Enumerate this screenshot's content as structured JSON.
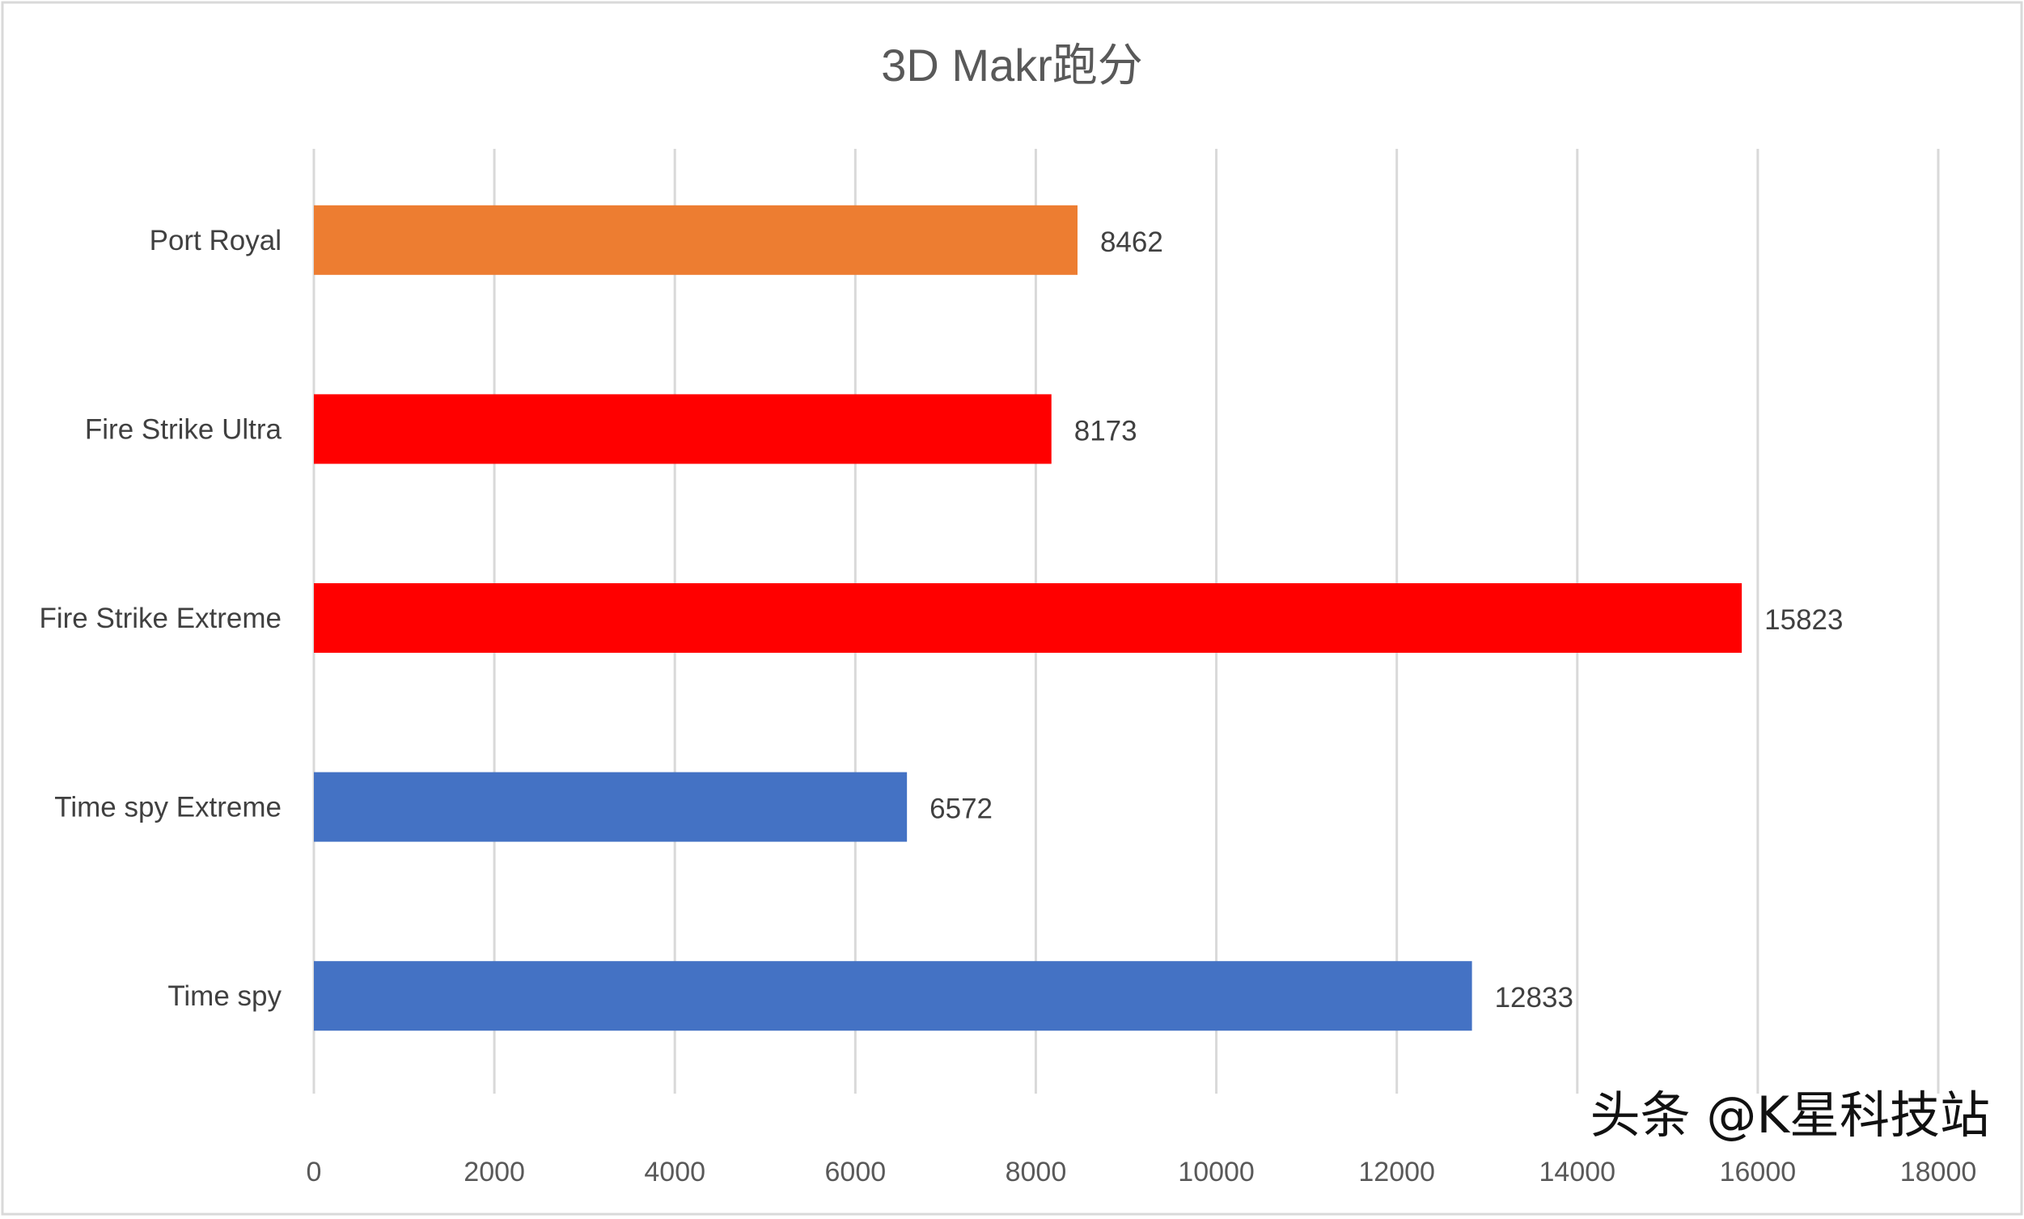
{
  "chart_data": {
    "type": "bar",
    "orientation": "horizontal",
    "title": "3D Makr跑分",
    "categories": [
      "Port Royal",
      "Fire Strike Ultra",
      "Fire Strike Extreme",
      "Time spy Extreme",
      "Time spy"
    ],
    "values": [
      8462,
      8173,
      15823,
      6572,
      12833
    ],
    "bar_colors": [
      "#ED7D31",
      "#FF0000",
      "#FF0000",
      "#4472C4",
      "#4472C4"
    ],
    "xlim": [
      0,
      18000
    ],
    "xticks": [
      0,
      2000,
      4000,
      6000,
      8000,
      10000,
      12000,
      14000,
      16000,
      18000
    ],
    "grid": "vertical",
    "data_labels": true,
    "xlabel": "",
    "ylabel": ""
  },
  "watermark": "头条 @K星科技站"
}
